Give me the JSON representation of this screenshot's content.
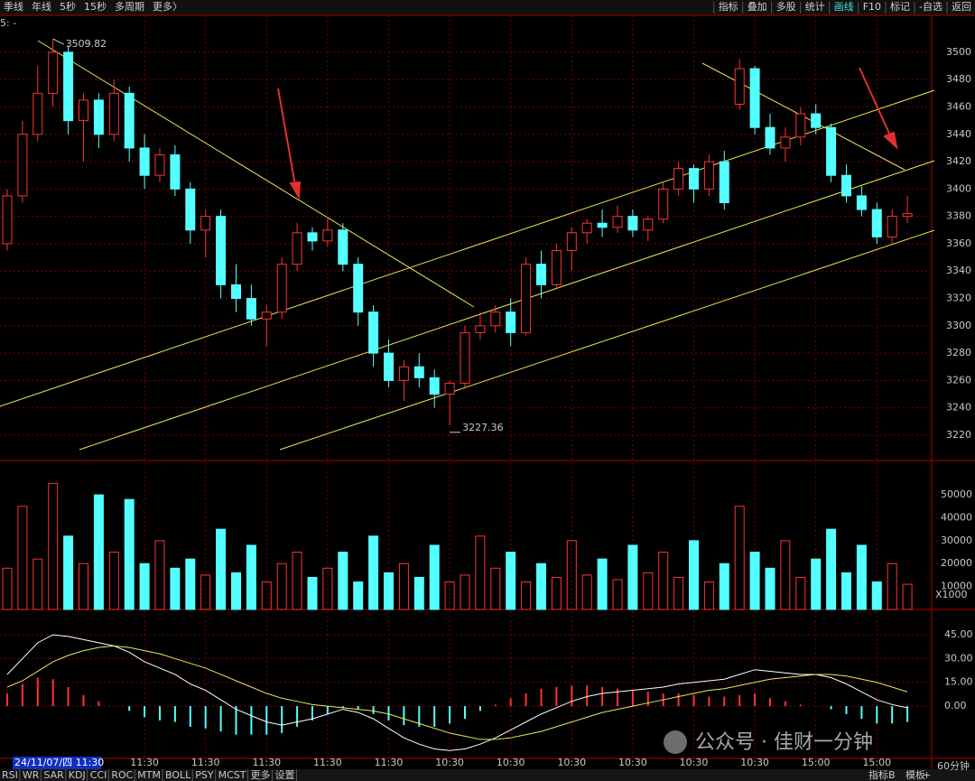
{
  "chart_data": {
    "type": "candlestick",
    "toolbar_left": [
      "季线",
      "年线",
      "5秒",
      "15秒",
      "多周期",
      "更多〉"
    ],
    "toolbar_right": [
      "指标",
      "叠加",
      "多股",
      "统计",
      "画线",
      "F10",
      "标记",
      "-自选",
      "返回"
    ],
    "corner_label": "5: -",
    "categories": [
      null,
      null,
      null,
      null,
      null,
      null,
      null,
      null,
      null,
      "11:30",
      null,
      null,
      null,
      "11:30",
      null,
      null,
      null,
      "11:30",
      null,
      null,
      null,
      "11:30",
      null,
      null,
      null,
      "11:30",
      null,
      null,
      null,
      "10:30",
      null,
      null,
      null,
      "10:30",
      null,
      null,
      null,
      "10:30",
      null,
      null,
      null,
      "10:30",
      null,
      null,
      null,
      "10:30",
      null,
      null,
      null,
      "10:30",
      null,
      null,
      null,
      "15:00",
      null,
      null,
      null,
      "15:00",
      null,
      null
    ],
    "open": [
      3360,
      3395,
      3440,
      3470,
      3500,
      3450,
      3465,
      3440,
      3470,
      3430,
      3410,
      3425,
      3400,
      3370,
      3380,
      3330,
      3320,
      3305,
      3310,
      3345,
      3368,
      3362,
      3370,
      3345,
      3310,
      3280,
      3260,
      3270,
      3262,
      3250,
      3258,
      3295,
      3300,
      3310,
      3295,
      3345,
      3330,
      3355,
      3368,
      3375,
      3372,
      3380,
      3370,
      3378,
      3400,
      3415,
      3400,
      3420,
      3462,
      3488,
      3445,
      3430,
      3438,
      3455,
      3445,
      3410,
      3395,
      3385,
      3365,
      3380
    ],
    "high": [
      3400,
      3450,
      3490,
      3509.82,
      3505,
      3470,
      3470,
      3480,
      3475,
      3440,
      3430,
      3432,
      3405,
      3385,
      3385,
      3345,
      3330,
      3315,
      3350,
      3375,
      3372,
      3378,
      3375,
      3350,
      3315,
      3290,
      3275,
      3280,
      3268,
      3260,
      3300,
      3310,
      3315,
      3320,
      3350,
      3355,
      3360,
      3372,
      3378,
      3385,
      3388,
      3385,
      3380,
      3405,
      3420,
      3418,
      3425,
      3428,
      3495,
      3490,
      3455,
      3445,
      3460,
      3462,
      3448,
      3418,
      3402,
      3390,
      3385,
      3395
    ],
    "low": [
      3355,
      3390,
      3435,
      3460,
      3440,
      3420,
      3430,
      3435,
      3420,
      3400,
      3405,
      3395,
      3360,
      3350,
      3320,
      3310,
      3300,
      3285,
      3305,
      3340,
      3355,
      3358,
      3340,
      3300,
      3270,
      3255,
      3245,
      3255,
      3240,
      3227.36,
      3255,
      3290,
      3295,
      3285,
      3293,
      3320,
      3328,
      3340,
      3360,
      3365,
      3368,
      3365,
      3362,
      3375,
      3395,
      3390,
      3395,
      3385,
      3458,
      3440,
      3425,
      3420,
      3432,
      3440,
      3405,
      3390,
      3380,
      3360,
      3360,
      3375
    ],
    "close": [
      3395,
      3440,
      3470,
      3500,
      3450,
      3465,
      3440,
      3470,
      3430,
      3410,
      3425,
      3400,
      3370,
      3380,
      3330,
      3320,
      3305,
      3310,
      3345,
      3368,
      3362,
      3370,
      3345,
      3310,
      3280,
      3260,
      3270,
      3262,
      3250,
      3258,
      3295,
      3300,
      3310,
      3295,
      3345,
      3330,
      3355,
      3368,
      3375,
      3372,
      3380,
      3370,
      3378,
      3400,
      3415,
      3400,
      3420,
      3390,
      3488,
      3445,
      3430,
      3438,
      3455,
      3445,
      3410,
      3395,
      3385,
      3365,
      3380,
      3382
    ],
    "up_color": "#ff3232",
    "down_color": "#54ffff",
    "ylim": [
      3201.5,
      3527
    ],
    "yticks": [
      3220,
      3240,
      3260,
      3280,
      3300,
      3320,
      3340,
      3360,
      3380,
      3400,
      3420,
      3440,
      3460,
      3480,
      3500
    ],
    "cursor_label": "24/11/07/四 11:30",
    "volume": {
      "values": [
        18000,
        45000,
        22000,
        55000,
        32000,
        20000,
        50000,
        25000,
        48000,
        20000,
        30000,
        18000,
        22000,
        15000,
        35000,
        16000,
        28000,
        12000,
        20000,
        25000,
        14000,
        18000,
        25000,
        12000,
        32000,
        16000,
        20000,
        14000,
        28000,
        12000,
        15000,
        32000,
        18000,
        25000,
        12000,
        20000,
        14000,
        30000,
        15000,
        22000,
        13000,
        28000,
        16000,
        25000,
        14000,
        30000,
        12000,
        20000,
        45000,
        25000,
        18000,
        30000,
        14000,
        22000,
        35000,
        16000,
        28000,
        12000,
        20000,
        11000
      ],
      "ylim": [
        0,
        65000
      ],
      "yticks": [
        10000,
        20000,
        30000,
        40000,
        50000
      ],
      "unit_label": "X1000"
    },
    "macd": {
      "dif": [
        20,
        30,
        40,
        45,
        44,
        42,
        40,
        38,
        34,
        28,
        24,
        20,
        14,
        10,
        4,
        -2,
        -6,
        -10,
        -12,
        -10,
        -8,
        -5,
        -2,
        -4,
        -8,
        -14,
        -20,
        -24,
        -27,
        -28,
        -27,
        -24,
        -20,
        -15,
        -10,
        -5,
        -1,
        3,
        6,
        8,
        9,
        10,
        11,
        12,
        14,
        15,
        16,
        17,
        20,
        23,
        22,
        21,
        20,
        20,
        18,
        14,
        9,
        4,
        1,
        -1
      ],
      "dea": [
        12,
        16,
        22,
        28,
        32,
        35,
        37,
        38,
        37,
        35,
        33,
        30,
        27,
        24,
        20,
        16,
        12,
        8,
        5,
        3,
        1,
        0,
        -1,
        -2,
        -3,
        -5,
        -8,
        -11,
        -14,
        -17,
        -19,
        -21,
        -21,
        -20,
        -18,
        -16,
        -13,
        -10,
        -7,
        -4,
        -2,
        0,
        2,
        4,
        6,
        8,
        10,
        11,
        13,
        15,
        17,
        18,
        19,
        20,
        20,
        19,
        17,
        15,
        12,
        9
      ],
      "hist": [
        8,
        14,
        18,
        17,
        12,
        7,
        3,
        0,
        -3,
        -7,
        -9,
        -10,
        -13,
        -14,
        -16,
        -18,
        -18,
        -18,
        -17,
        -13,
        -9,
        -5,
        -1,
        -2,
        -5,
        -9,
        -12,
        -13,
        -13,
        -11,
        -8,
        -3,
        1,
        5,
        8,
        11,
        12,
        13,
        13,
        12,
        11,
        10,
        9,
        8,
        8,
        7,
        6,
        6,
        7,
        8,
        5,
        3,
        1,
        0,
        -2,
        -5,
        -8,
        -11,
        -11,
        -10
      ],
      "dif_color": "#ffffff",
      "dea_color": "#e8e860",
      "ylim": [
        -33,
        61
      ],
      "yticks": [
        {
          "value": 45,
          "label": "45.00"
        },
        {
          "value": 30,
          "label": "30.00"
        },
        {
          "value": 15,
          "label": "15.00"
        },
        {
          "value": 0,
          "label": "0.00"
        }
      ]
    },
    "bottom_tabs": [
      "RSI",
      "WR",
      "SAR",
      "KDJ",
      "CCI",
      "ROC",
      "MTM",
      "BOLL",
      "PSY",
      "MCST",
      "更多",
      "设置"
    ],
    "bottom_right": [
      "指标B",
      "模板",
      "+",
      "60分钟"
    ],
    "watermark": "公众号 · 佳财一分钟"
  }
}
